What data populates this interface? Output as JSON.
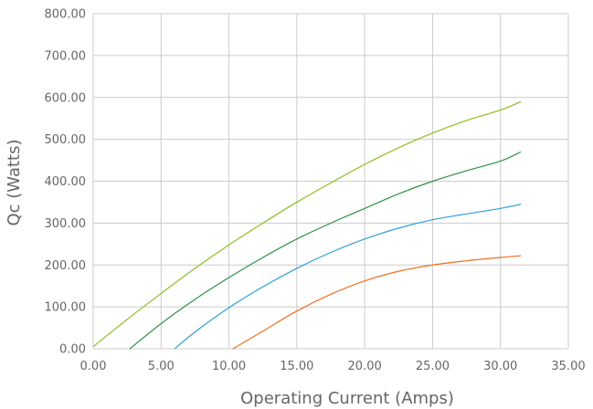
{
  "chart_data": {
    "type": "line",
    "title": "",
    "xlabel": "Operating Current (Amps)",
    "ylabel": "Qc (Watts)",
    "xlim": [
      0,
      35
    ],
    "ylim": [
      0,
      800
    ],
    "x_ticks": [
      "0.00",
      "5.00",
      "10.00",
      "15.00",
      "20.00",
      "25.00",
      "30.00",
      "35.00"
    ],
    "y_ticks": [
      "0.00",
      "100.00",
      "200.00",
      "300.00",
      "400.00",
      "500.00",
      "600.00",
      "700.00",
      "800.00"
    ],
    "grid": true,
    "legend": "none",
    "series": [
      {
        "color": "#8dbf1f",
        "points": [
          [
            0,
            5
          ],
          [
            2.5,
            70
          ],
          [
            5,
            132
          ],
          [
            7.5,
            192
          ],
          [
            10,
            248
          ],
          [
            12.5,
            300
          ],
          [
            15,
            350
          ],
          [
            17.5,
            396
          ],
          [
            20,
            440
          ],
          [
            22.5,
            480
          ],
          [
            25,
            515
          ],
          [
            27.5,
            545
          ],
          [
            30,
            570
          ],
          [
            31.5,
            590
          ]
        ]
      },
      {
        "color": "#2e9140",
        "points": [
          [
            2.7,
            0
          ],
          [
            5,
            60
          ],
          [
            7.5,
            118
          ],
          [
            10,
            170
          ],
          [
            12.5,
            218
          ],
          [
            15,
            262
          ],
          [
            17.5,
            300
          ],
          [
            20,
            335
          ],
          [
            22.5,
            370
          ],
          [
            25,
            400
          ],
          [
            27.5,
            425
          ],
          [
            30,
            448
          ],
          [
            31.5,
            470
          ]
        ]
      },
      {
        "color": "#2ea0d4",
        "points": [
          [
            6,
            0
          ],
          [
            7.5,
            40
          ],
          [
            10,
            98
          ],
          [
            12.5,
            148
          ],
          [
            15,
            192
          ],
          [
            17.5,
            230
          ],
          [
            20,
            262
          ],
          [
            22.5,
            288
          ],
          [
            25,
            308
          ],
          [
            27.5,
            322
          ],
          [
            30,
            335
          ],
          [
            31.5,
            345
          ]
        ]
      },
      {
        "color": "#f07020",
        "points": [
          [
            10.3,
            0
          ],
          [
            12.5,
            42
          ],
          [
            15,
            90
          ],
          [
            17.5,
            130
          ],
          [
            20,
            162
          ],
          [
            22.5,
            185
          ],
          [
            25,
            200
          ],
          [
            27.5,
            210
          ],
          [
            30,
            218
          ],
          [
            31.5,
            222
          ]
        ]
      }
    ]
  }
}
